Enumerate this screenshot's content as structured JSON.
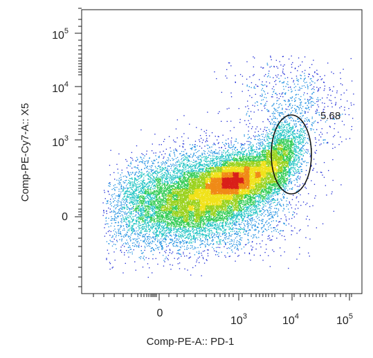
{
  "chart_data": {
    "type": "scatter",
    "title": "",
    "xlabel": "Comp-PE-A:: PD-1",
    "ylabel": "Comp-PE-Cy7-A:: X5",
    "x_scale": "biexponential",
    "y_scale": "biexponential",
    "x_ticks": [
      {
        "value": 0,
        "label": "0",
        "exponent": ""
      },
      {
        "value": 1000,
        "label": "10",
        "exponent": "3"
      },
      {
        "value": 10000,
        "label": "10",
        "exponent": "4"
      },
      {
        "value": 100000,
        "label": "10",
        "exponent": "5"
      }
    ],
    "y_ticks": [
      {
        "value": 0,
        "label": "0",
        "exponent": ""
      },
      {
        "value": 1000,
        "label": "10",
        "exponent": "3"
      },
      {
        "value": 10000,
        "label": "10",
        "exponent": "4"
      },
      {
        "value": 100000,
        "label": "10",
        "exponent": "5"
      }
    ],
    "density_colors": [
      "#1f2bd6",
      "#1f8fe0",
      "#22c4c4",
      "#33cc55",
      "#9ad21d",
      "#f0e21a",
      "#f08a17",
      "#d9201a"
    ],
    "gate": {
      "shape": "ellipse",
      "label": "5.68",
      "percent": 5.68,
      "x_center": 9000,
      "y_center": 520
    },
    "population": {
      "x_center": 750,
      "y_center": 60,
      "x_range": [
        -400,
        90000
      ],
      "y_range": [
        -1000,
        24000
      ]
    }
  }
}
